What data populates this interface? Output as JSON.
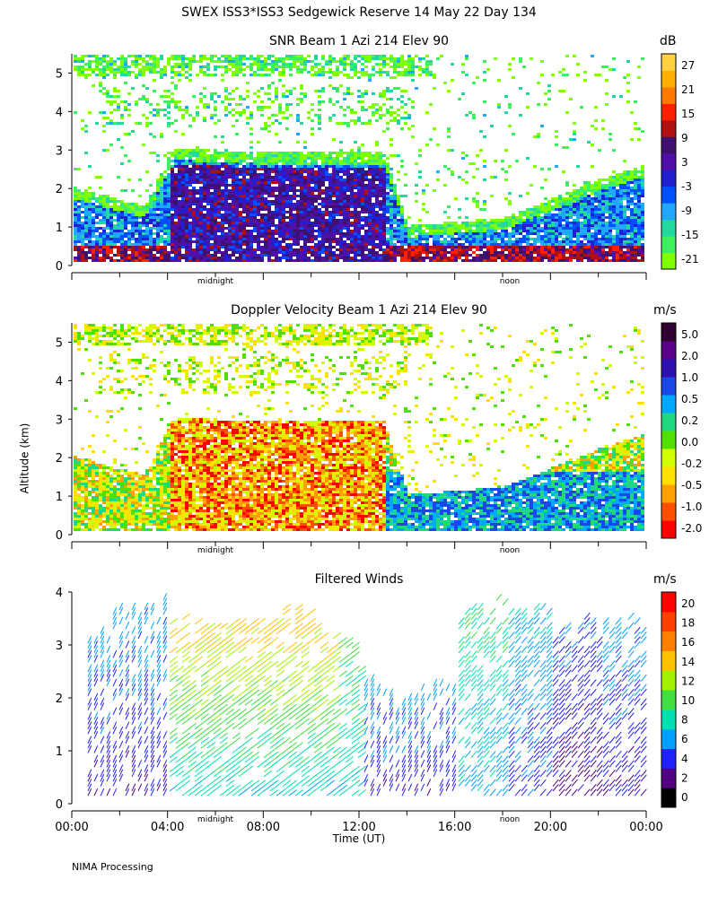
{
  "title": "SWEX ISS3*ISS3 Sedgewick Reserve  14 May 22 Day 134",
  "y_axis_title": "Altitude (km)",
  "x_axis_title": "Time (UT)",
  "footer": "NIMA Processing",
  "panels": [
    {
      "title": "SNR Beam 1 Azi 214 Elev 90",
      "unit": "dB"
    },
    {
      "title": "Doppler Velocity Beam 1 Azi 214 Elev 90",
      "unit": "m/s"
    },
    {
      "title": "Filtered Winds",
      "unit": "m/s"
    }
  ],
  "chart_data": [
    {
      "type": "heatmap",
      "title": "SNR Beam 1 Azi 214 Elev 90",
      "ylabel": "Altitude (km)",
      "y_ticks": [
        "0",
        "1",
        "2",
        "3",
        "4",
        "5"
      ],
      "ylim": [
        0,
        5.5
      ],
      "xlim_hours": [
        0,
        24
      ],
      "x_annotations": [
        "midnight",
        "noon"
      ],
      "colorbar": {
        "unit": "dB",
        "tick_labels": [
          "27",
          "21",
          "15",
          "9",
          "3",
          "-3",
          "-9",
          "-15",
          "-21"
        ],
        "colors": [
          "#7fff00",
          "#3cf060",
          "#20d8a0",
          "#20a8ff",
          "#0050ff",
          "#2020d0",
          "#5010a8",
          "#401070",
          "#b01010",
          "#ff2000",
          "#ff7a00",
          "#ffb000",
          "#ffd040"
        ]
      },
      "features": {
        "echo_top_km": [
          [
            0,
            2.0
          ],
          [
            3,
            1.5
          ],
          [
            4.2,
            3.0
          ],
          [
            8,
            2.9
          ],
          [
            13,
            2.9
          ],
          [
            14,
            1.0
          ],
          [
            18,
            1.2
          ],
          [
            22,
            2.2
          ],
          [
            24,
            2.6
          ]
        ]
      }
    },
    {
      "type": "heatmap",
      "title": "Doppler Velocity Beam 1 Azi 214 Elev 90",
      "ylabel": "Altitude (km)",
      "y_ticks": [
        "0",
        "1",
        "2",
        "3",
        "4",
        "5"
      ],
      "ylim": [
        0,
        5.5
      ],
      "xlim_hours": [
        0,
        24
      ],
      "x_annotations": [
        "midnight",
        "noon"
      ],
      "colorbar": {
        "unit": "m/s",
        "tick_labels": [
          "5.0",
          "2.0",
          "1.0",
          "0.5",
          "0.2",
          "0.0",
          "-0.2",
          "-0.5",
          "-1.0",
          "-2.0"
        ],
        "colors": [
          "#ff0000",
          "#ff5000",
          "#ffa000",
          "#ffe000",
          "#d0ff00",
          "#50e000",
          "#20d880",
          "#00a8ff",
          "#1848e8",
          "#3010b0",
          "#5a0088",
          "#300030"
        ]
      }
    },
    {
      "type": "scatter",
      "title": "Filtered Winds",
      "ylabel": "Altitude (km)",
      "xlabel": "Time (UT)",
      "x_ticks": [
        "00:00",
        "04:00",
        "08:00",
        "12:00",
        "16:00",
        "20:00",
        "00:00"
      ],
      "y_ticks": [
        "0",
        "1",
        "2",
        "3",
        "4"
      ],
      "ylim": [
        0,
        4
      ],
      "x_annotations": [
        "midnight",
        "noon"
      ],
      "colorbar": {
        "unit": "m/s",
        "tick_labels": [
          "20",
          "18",
          "16",
          "14",
          "12",
          "10",
          "8",
          "6",
          "4",
          "2",
          "0"
        ],
        "colors": [
          "#000000",
          "#500080",
          "#2020ff",
          "#00a0ff",
          "#00e0b0",
          "#40e040",
          "#a0f000",
          "#ffc000",
          "#ff8000",
          "#ff4000",
          "#ff0000"
        ]
      },
      "wind_profile_summary": [
        {
          "hour": 1,
          "top_km": 3.3,
          "speed_ms": 3
        },
        {
          "hour": 2,
          "top_km": 3.9,
          "speed_ms": 3
        },
        {
          "hour": 3,
          "top_km": 3.9,
          "speed_ms": 3
        },
        {
          "hour": 5,
          "top_km": 3.6,
          "speed_ms": 9
        },
        {
          "hour": 7,
          "top_km": 3.7,
          "speed_ms": 10
        },
        {
          "hour": 9,
          "top_km": 3.8,
          "speed_ms": 12
        },
        {
          "hour": 11,
          "top_km": 3.4,
          "speed_ms": 7
        },
        {
          "hour": 13,
          "top_km": 2.4,
          "speed_ms": 3
        },
        {
          "hour": 15,
          "top_km": 2.3,
          "speed_ms": 3
        },
        {
          "hour": 17,
          "top_km": 4.0,
          "speed_ms": 6
        },
        {
          "hour": 19,
          "top_km": 4.0,
          "speed_ms": 4
        },
        {
          "hour": 21,
          "top_km": 3.5,
          "speed_ms": 2
        },
        {
          "hour": 23,
          "top_km": 3.6,
          "speed_ms": 3
        }
      ]
    }
  ]
}
